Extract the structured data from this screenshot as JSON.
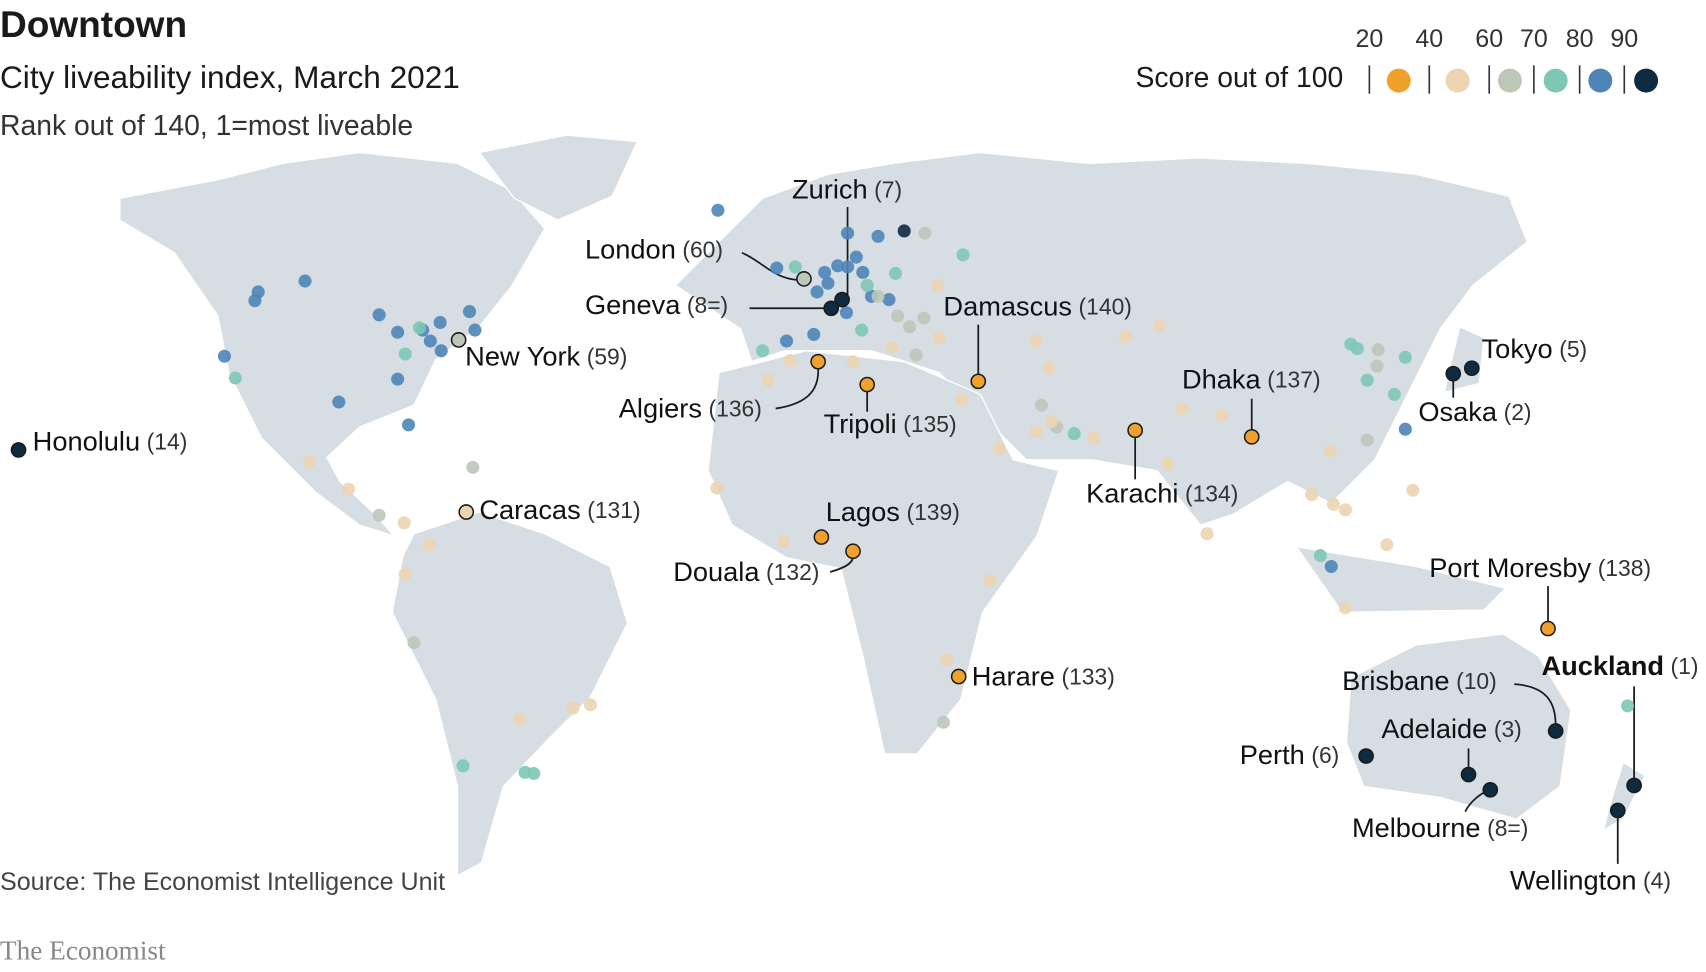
{
  "header": {
    "title": "Downtown",
    "subtitle": "City liveability index, March 2021",
    "note": "Rank out of 140, 1=most liveable"
  },
  "legend": {
    "label": "Score out of 100",
    "ticks": [
      20,
      40,
      60,
      70,
      80,
      90
    ],
    "colors": [
      "#f0a12c",
      "#ecd4b2",
      "#bdc7b8",
      "#7ec7b5",
      "#4e85b7",
      "#0e2b40"
    ]
  },
  "cities": [
    {
      "name": "Honolulu",
      "rank": "(14)",
      "color": "#0e2b40"
    },
    {
      "name": "New York",
      "rank": "(59)",
      "color": "#bdc7b8"
    },
    {
      "name": "Caracas",
      "rank": "(131)",
      "color": "#ecd4b2"
    },
    {
      "name": "London",
      "rank": "(60)",
      "color": "#bdc7b8"
    },
    {
      "name": "Zurich",
      "rank": "(7)",
      "color": "#0e2b40"
    },
    {
      "name": "Geneva",
      "rank": "(8=)",
      "color": "#0e2b40"
    },
    {
      "name": "Algiers",
      "rank": "(136)",
      "color": "#f0a12c"
    },
    {
      "name": "Tripoli",
      "rank": "(135)",
      "color": "#f0a12c"
    },
    {
      "name": "Damascus",
      "rank": "(140)",
      "color": "#f0a12c"
    },
    {
      "name": "Lagos",
      "rank": "(139)",
      "color": "#f0a12c"
    },
    {
      "name": "Douala",
      "rank": "(132)",
      "color": "#f0a12c"
    },
    {
      "name": "Harare",
      "rank": "(133)",
      "color": "#f0a12c"
    },
    {
      "name": "Karachi",
      "rank": "(134)",
      "color": "#f0a12c"
    },
    {
      "name": "Dhaka",
      "rank": "(137)",
      "color": "#f0a12c"
    },
    {
      "name": "Tokyo",
      "rank": "(5)",
      "color": "#0e2b40"
    },
    {
      "name": "Osaka",
      "rank": "(2)",
      "color": "#0e2b40"
    },
    {
      "name": "Port Moresby",
      "rank": "(138)",
      "color": "#f0a12c"
    },
    {
      "name": "Auckland",
      "rank": "(1)",
      "color": "#0e2b40"
    },
    {
      "name": "Brisbane",
      "rank": "(10)",
      "color": "#0e2b40"
    },
    {
      "name": "Adelaide",
      "rank": "(3)",
      "color": "#0e2b40"
    },
    {
      "name": "Perth",
      "rank": "(6)",
      "color": "#0e2b40"
    },
    {
      "name": "Melbourne",
      "rank": "(8=)",
      "color": "#0e2b40"
    },
    {
      "name": "Wellington",
      "rank": "(4)",
      "color": "#0e2b40"
    }
  ],
  "source": "Source: The Economist Intelligence Unit",
  "brand": "The Economist"
}
